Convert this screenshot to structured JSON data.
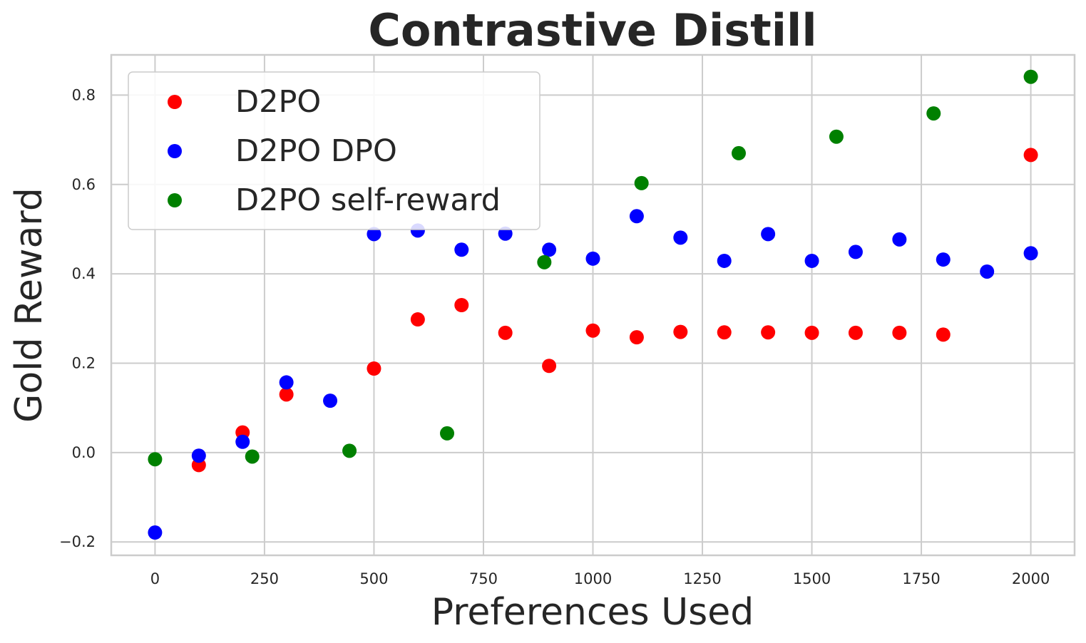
{
  "chart_data": {
    "type": "scatter",
    "title": "Contrastive Distill",
    "xlabel": "Preferences Used",
    "ylabel": "Gold Reward",
    "xlim": [
      -100,
      2100
    ],
    "ylim": [
      -0.23,
      0.89
    ],
    "xticks": [
      0,
      250,
      500,
      750,
      1000,
      1250,
      1500,
      1750,
      2000
    ],
    "xtick_labels": [
      "0",
      "250",
      "500",
      "750",
      "1000",
      "1250",
      "1500",
      "1750",
      "2000"
    ],
    "yticks": [
      -0.2,
      0.0,
      0.2,
      0.4,
      0.6,
      0.8
    ],
    "ytick_labels": [
      "−0.2",
      "0.0",
      "0.2",
      "0.4",
      "0.6",
      "0.8"
    ],
    "grid": true,
    "legend_position": "top-left",
    "series": [
      {
        "name": "D2PO",
        "color": "#ff0000",
        "x": [
          100,
          200,
          300,
          500,
          600,
          700,
          800,
          900,
          1000,
          1100,
          1200,
          1300,
          1400,
          1500,
          1600,
          1700,
          1800,
          2000
        ],
        "y": [
          -0.028,
          0.045,
          0.13,
          0.188,
          0.298,
          0.33,
          0.268,
          0.194,
          0.273,
          0.258,
          0.27,
          0.269,
          0.269,
          0.268,
          0.268,
          0.268,
          0.264,
          0.666
        ]
      },
      {
        "name": "D2PO DPO",
        "color": "#0000ff",
        "x": [
          0,
          100,
          200,
          300,
          400,
          500,
          600,
          700,
          800,
          900,
          1000,
          1100,
          1200,
          1300,
          1400,
          1500,
          1600,
          1700,
          1800,
          1900,
          2000
        ],
        "y": [
          -0.179,
          -0.007,
          0.024,
          0.157,
          0.116,
          0.489,
          0.497,
          0.454,
          0.49,
          0.454,
          0.434,
          0.529,
          0.481,
          0.429,
          0.489,
          0.429,
          0.449,
          0.477,
          0.432,
          0.405,
          0.446
        ]
      },
      {
        "name": "D2PO self-reward",
        "color": "#008000",
        "x": [
          0,
          222,
          444,
          667,
          889,
          1111,
          1333,
          1556,
          1778,
          2000
        ],
        "y": [
          -0.015,
          -0.009,
          0.004,
          0.043,
          0.426,
          0.603,
          0.67,
          0.707,
          0.759,
          0.841
        ]
      }
    ]
  }
}
